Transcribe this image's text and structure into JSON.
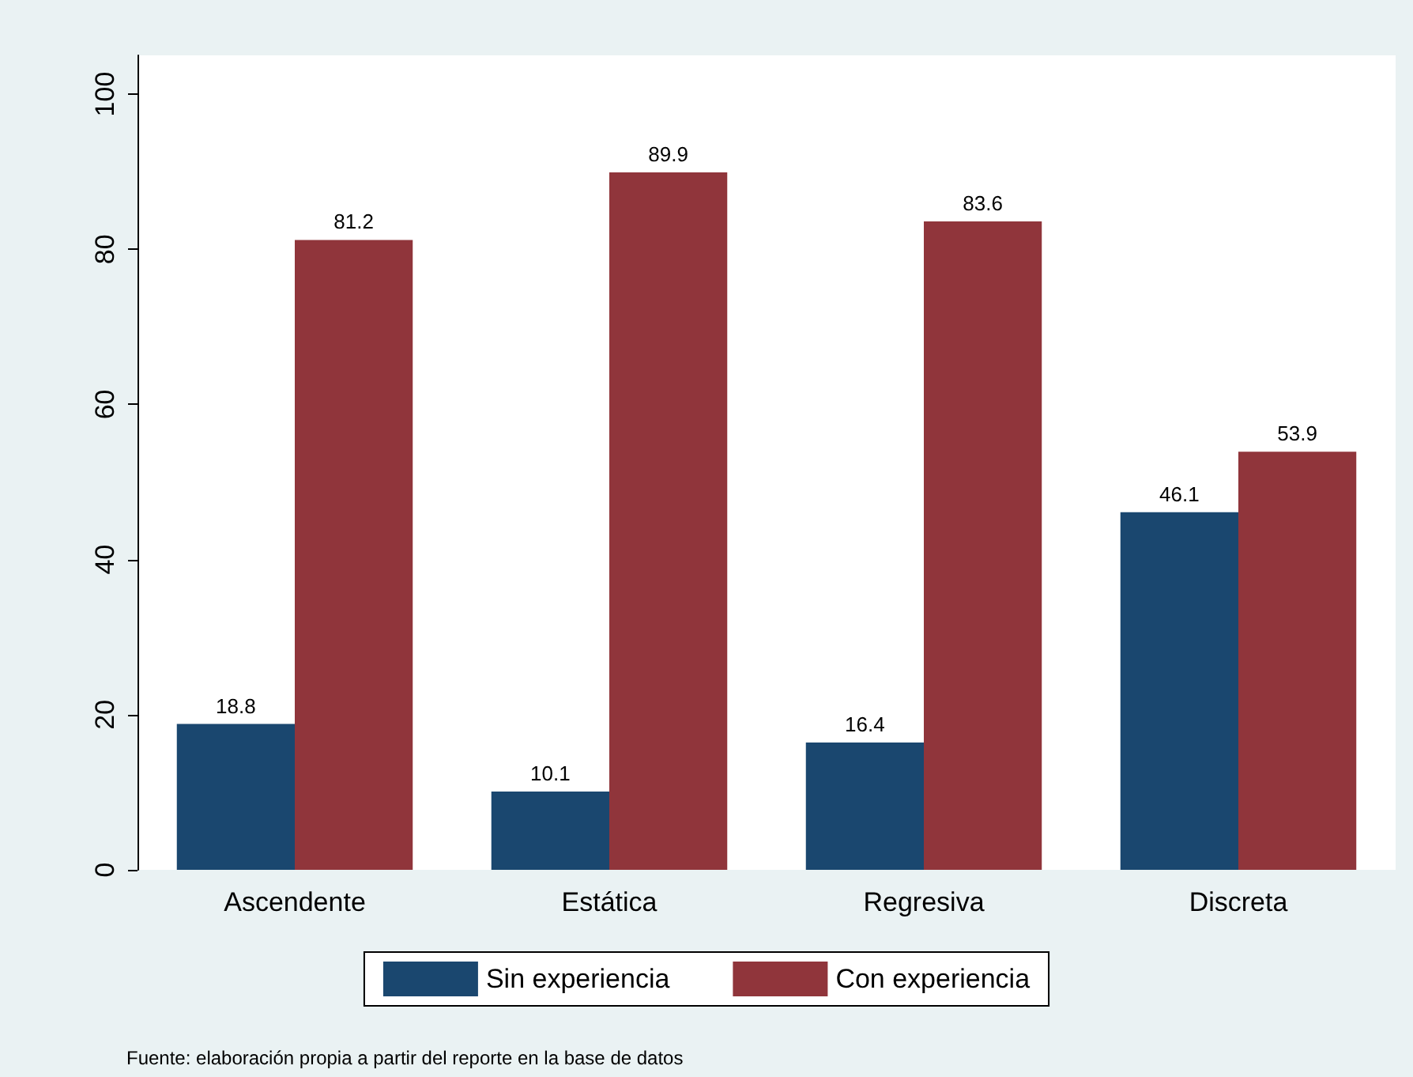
{
  "chart_data": {
    "type": "bar",
    "categories": [
      "Ascendente",
      "Estática",
      "Regresiva",
      "Discreta"
    ],
    "series": [
      {
        "name": "Sin experiencia",
        "color": "#1a476f",
        "values": [
          18.8,
          10.1,
          16.4,
          46.1
        ]
      },
      {
        "name": "Con experiencia",
        "color": "#90353b",
        "values": [
          81.2,
          89.9,
          83.6,
          53.9
        ]
      }
    ],
    "ylim": [
      0,
      105
    ],
    "yticks": [
      0,
      20,
      40,
      60,
      80,
      100
    ],
    "grid": false,
    "legend": "bottom",
    "data_labels": true,
    "annotations": [
      "Fuente: elaboración propia a partir del reporte en la base de datos"
    ]
  }
}
